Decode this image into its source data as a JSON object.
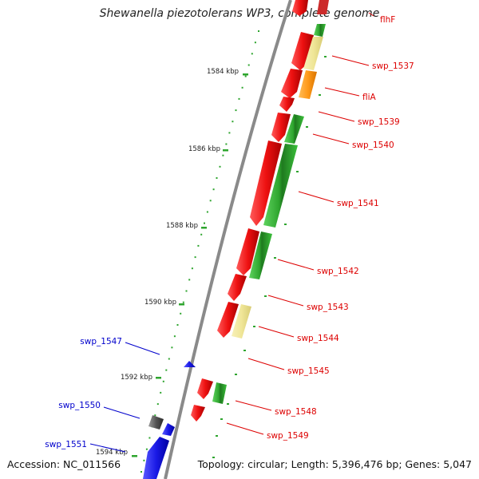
{
  "title": "Shewanella piezotolerans WP3, complete genome",
  "accession": "Accession: NC_011566",
  "topology": "Topology: circular; Length: 5,396,476 bp; Genes: 5,047",
  "colors": {
    "red_gene": "#ee1111",
    "blue_gene": "#1a1ae6",
    "green_feature": "#2ea52e",
    "pale_yellow_feature": "#f2eaa0",
    "orange_feature": "#ff9a1a",
    "gray_gene": "#555555",
    "backbone": "#8a8a8a",
    "red_label": "#dd0000",
    "blue_label": "#0000cc"
  },
  "kbp_labels": [
    "1584 kbp",
    "1586 kbp",
    "1588 kbp",
    "1590 kbp",
    "1592 kbp",
    "1594 kbp"
  ],
  "gene_labels_right": [
    "flhF",
    "swp_1537",
    "fliA",
    "swp_1539",
    "swp_1540",
    "swp_1541",
    "swp_1542",
    "swp_1543",
    "swp_1544",
    "swp_1545",
    "swp_1548",
    "swp_1549"
  ],
  "gene_labels_left": [
    "swp_1547",
    "swp_1550",
    "swp_1551"
  ]
}
